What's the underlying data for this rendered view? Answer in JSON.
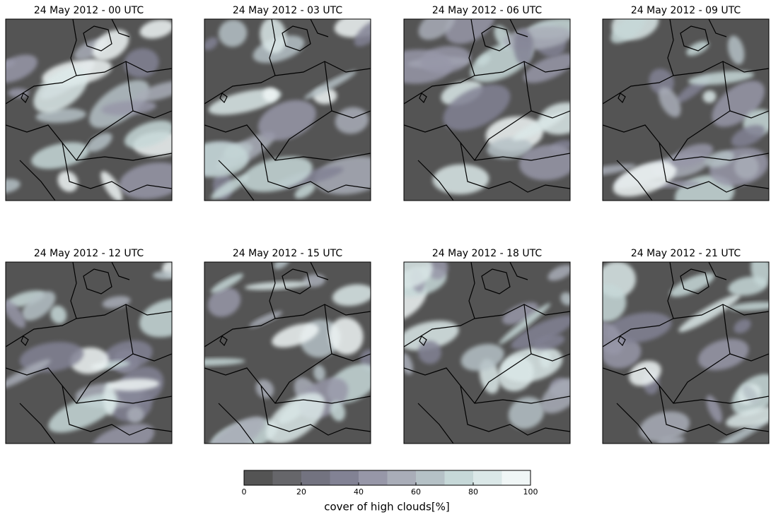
{
  "panels": [
    {
      "title": "24 May 2012 - 00 UTC"
    },
    {
      "title": "24 May 2012 - 03 UTC"
    },
    {
      "title": "24 May 2012 - 06 UTC"
    },
    {
      "title": "24 May 2012 - 09 UTC"
    },
    {
      "title": "24 May 2012 - 12 UTC"
    },
    {
      "title": "24 May 2012 - 15 UTC"
    },
    {
      "title": "24 May 2012 - 18 UTC"
    },
    {
      "title": "24 May 2012 - 21 UTC"
    }
  ],
  "colorbar": {
    "label": "cover of high clouds[%]",
    "lim": [
      0,
      100
    ],
    "ticks": [
      0,
      20,
      40,
      60,
      80,
      100
    ],
    "levels": [
      0,
      10,
      20,
      30,
      40,
      50,
      60,
      70,
      80,
      90,
      100
    ],
    "colors": [
      "#545454",
      "#66666a",
      "#737380",
      "#828294",
      "#9797a8",
      "#a9adb8",
      "#b5c1c6",
      "#c6d8d8",
      "#dbe8e8",
      "#f0f6f6"
    ]
  }
}
